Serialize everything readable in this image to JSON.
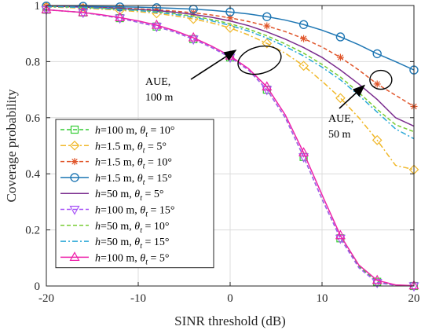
{
  "chart_data": {
    "type": "line",
    "xlabel": "SINR threshold (dB)",
    "ylabel": "Coverage probability",
    "xlim": [
      -20,
      20
    ],
    "ylim": [
      0,
      1
    ],
    "xticks": [
      -20,
      -10,
      0,
      10,
      20
    ],
    "xtick_labels": [
      "-20",
      "-10",
      "0",
      "10",
      "20"
    ],
    "yticks": [
      0,
      0.2,
      0.4,
      0.6,
      0.8,
      1
    ],
    "ytick_labels": [
      "0",
      "0.2",
      "0.4",
      "0.6",
      "0.8",
      "1"
    ],
    "grid": true,
    "legend_placement": "bottom-left",
    "annotations": [
      {
        "lines": [
          "AUE,",
          "100 m"
        ],
        "target": [
          1.5,
          0.82
        ]
      },
      {
        "lines": [
          "AUE,",
          "50 m"
        ],
        "target": [
          16.5,
          0.74
        ]
      }
    ],
    "x": [
      -20,
      -18,
      -16,
      -14,
      -12,
      -10,
      -8,
      -6,
      -4,
      -2,
      0,
      2,
      4,
      6,
      8,
      10,
      12,
      14,
      16,
      18,
      20
    ],
    "series": [
      {
        "name": "h=100 m, θt = 10°",
        "name_parts": [
          "h",
          "=100 m, ",
          "θ",
          "t",
          " = 10°"
        ],
        "color": "#33cc33",
        "dash": "5,3",
        "marker": "square",
        "values": [
          0.985,
          0.98,
          0.975,
          0.965,
          0.955,
          0.94,
          0.925,
          0.905,
          0.88,
          0.85,
          0.815,
          0.77,
          0.7,
          0.6,
          0.46,
          0.31,
          0.17,
          0.07,
          0.015,
          0.003,
          0.0
        ]
      },
      {
        "name": "h=1.5 m, θt = 5°",
        "name_parts": [
          "h",
          "=1.5 m, ",
          "θ",
          "t",
          " = 5°"
        ],
        "color": "#f0b82a",
        "dash": "7,3,2,3",
        "marker": "diamond",
        "values": [
          0.995,
          0.993,
          0.99,
          0.987,
          0.983,
          0.978,
          0.972,
          0.963,
          0.952,
          0.938,
          0.92,
          0.895,
          0.865,
          0.83,
          0.785,
          0.73,
          0.67,
          0.6,
          0.52,
          0.43,
          0.415
        ]
      },
      {
        "name": "h=1.5 m, θt = 10°",
        "name_parts": [
          "h",
          "=1.5 m, ",
          "θ",
          "t",
          " = 10°"
        ],
        "color": "#e0552a",
        "dash": "5,3",
        "marker": "asterisk",
        "values": [
          0.997,
          0.996,
          0.995,
          0.993,
          0.991,
          0.988,
          0.985,
          0.98,
          0.974,
          0.966,
          0.956,
          0.943,
          0.927,
          0.907,
          0.882,
          0.852,
          0.815,
          0.77,
          0.72,
          0.68,
          0.64
        ]
      },
      {
        "name": "h=1.5 m, θt = 15°",
        "name_parts": [
          "h",
          "=1.5 m, ",
          "θ",
          "t",
          " = 15°"
        ],
        "color": "#1f77b4",
        "dash": "",
        "marker": "circle",
        "values": [
          0.998,
          0.998,
          0.997,
          0.996,
          0.995,
          0.994,
          0.992,
          0.99,
          0.987,
          0.983,
          0.977,
          0.97,
          0.96,
          0.948,
          0.932,
          0.912,
          0.888,
          0.86,
          0.828,
          0.8,
          0.77
        ]
      },
      {
        "name": "h=50 m, θt = 5°",
        "name_parts": [
          "h",
          "=50 m, ",
          "θ",
          "t",
          " = 5°"
        ],
        "color": "#7a2c8e",
        "dash": "",
        "marker": "none",
        "values": [
          0.997,
          0.996,
          0.994,
          0.992,
          0.99,
          0.986,
          0.982,
          0.976,
          0.968,
          0.958,
          0.945,
          0.928,
          0.906,
          0.88,
          0.85,
          0.815,
          0.77,
          0.72,
          0.665,
          0.6,
          0.57
        ]
      },
      {
        "name": "h=100 m, θt = 15°",
        "name_parts": [
          "h",
          "=100 m, ",
          "θ",
          "t",
          " = 15°"
        ],
        "color": "#a855f7",
        "dash": "5,3",
        "marker": "triangle-down",
        "values": [
          0.985,
          0.98,
          0.975,
          0.965,
          0.955,
          0.94,
          0.925,
          0.905,
          0.88,
          0.85,
          0.815,
          0.77,
          0.7,
          0.6,
          0.46,
          0.31,
          0.17,
          0.065,
          0.012,
          0.002,
          0.0
        ]
      },
      {
        "name": "h=50 m, θt = 10°",
        "name_parts": [
          "h",
          "=50 m, ",
          "θ",
          "t",
          " = 10°"
        ],
        "color": "#77cc33",
        "dash": "5,3",
        "marker": "none",
        "values": [
          0.996,
          0.995,
          0.993,
          0.99,
          0.987,
          0.983,
          0.978,
          0.971,
          0.962,
          0.95,
          0.935,
          0.916,
          0.892,
          0.863,
          0.83,
          0.79,
          0.745,
          0.69,
          0.63,
          0.575,
          0.55
        ]
      },
      {
        "name": "h=50 m, θt = 15°",
        "name_parts": [
          "h",
          "=50 m, ",
          "θ",
          "t",
          " = 15°"
        ],
        "color": "#2aa8d8",
        "dash": "7,3,2,3",
        "marker": "none",
        "values": [
          0.996,
          0.995,
          0.993,
          0.99,
          0.986,
          0.982,
          0.976,
          0.968,
          0.958,
          0.945,
          0.929,
          0.909,
          0.884,
          0.854,
          0.82,
          0.78,
          0.735,
          0.68,
          0.62,
          0.56,
          0.525
        ]
      },
      {
        "name": "h=100 m, θt = 5°",
        "name_parts": [
          "h",
          "=100 m, ",
          "θ",
          "t",
          " = 5°"
        ],
        "color": "#ee22aa",
        "dash": "",
        "marker": "triangle-up",
        "values": [
          0.985,
          0.98,
          0.975,
          0.967,
          0.957,
          0.945,
          0.93,
          0.91,
          0.885,
          0.855,
          0.82,
          0.775,
          0.71,
          0.61,
          0.475,
          0.325,
          0.18,
          0.075,
          0.02,
          0.004,
          0.001
        ]
      }
    ]
  }
}
